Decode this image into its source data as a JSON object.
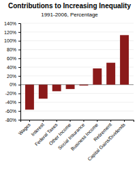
{
  "chart_data": {
    "type": "bar",
    "title": "Contributions to Increasing Inequality",
    "subtitle": "1991-2006, Percentage",
    "categories": [
      "Wages",
      "Interest",
      "Federal Taxes",
      "Other Income",
      "Social Insurance",
      "Business Income",
      "Retirement",
      "Capital Gains/Dividends"
    ],
    "values": [
      -57,
      -32,
      -15,
      -10,
      -2,
      37,
      50,
      113
    ],
    "color": "#8B1A1A",
    "ylim": [
      -80,
      140
    ],
    "yticks": [
      {
        "value": -80,
        "label": "-80%"
      },
      {
        "value": -60,
        "label": "-60%"
      },
      {
        "value": -40,
        "label": "-40%"
      },
      {
        "value": -20,
        "label": "-20%"
      },
      {
        "value": 0,
        "label": "0%"
      },
      {
        "value": 20,
        "label": "20%"
      },
      {
        "value": 40,
        "label": "40%"
      },
      {
        "value": 60,
        "label": "60%"
      },
      {
        "value": 80,
        "label": "80%"
      },
      {
        "value": 100,
        "label": "100%"
      },
      {
        "value": 120,
        "label": "120%"
      },
      {
        "value": 140,
        "label": "140%"
      }
    ],
    "grid": true
  }
}
